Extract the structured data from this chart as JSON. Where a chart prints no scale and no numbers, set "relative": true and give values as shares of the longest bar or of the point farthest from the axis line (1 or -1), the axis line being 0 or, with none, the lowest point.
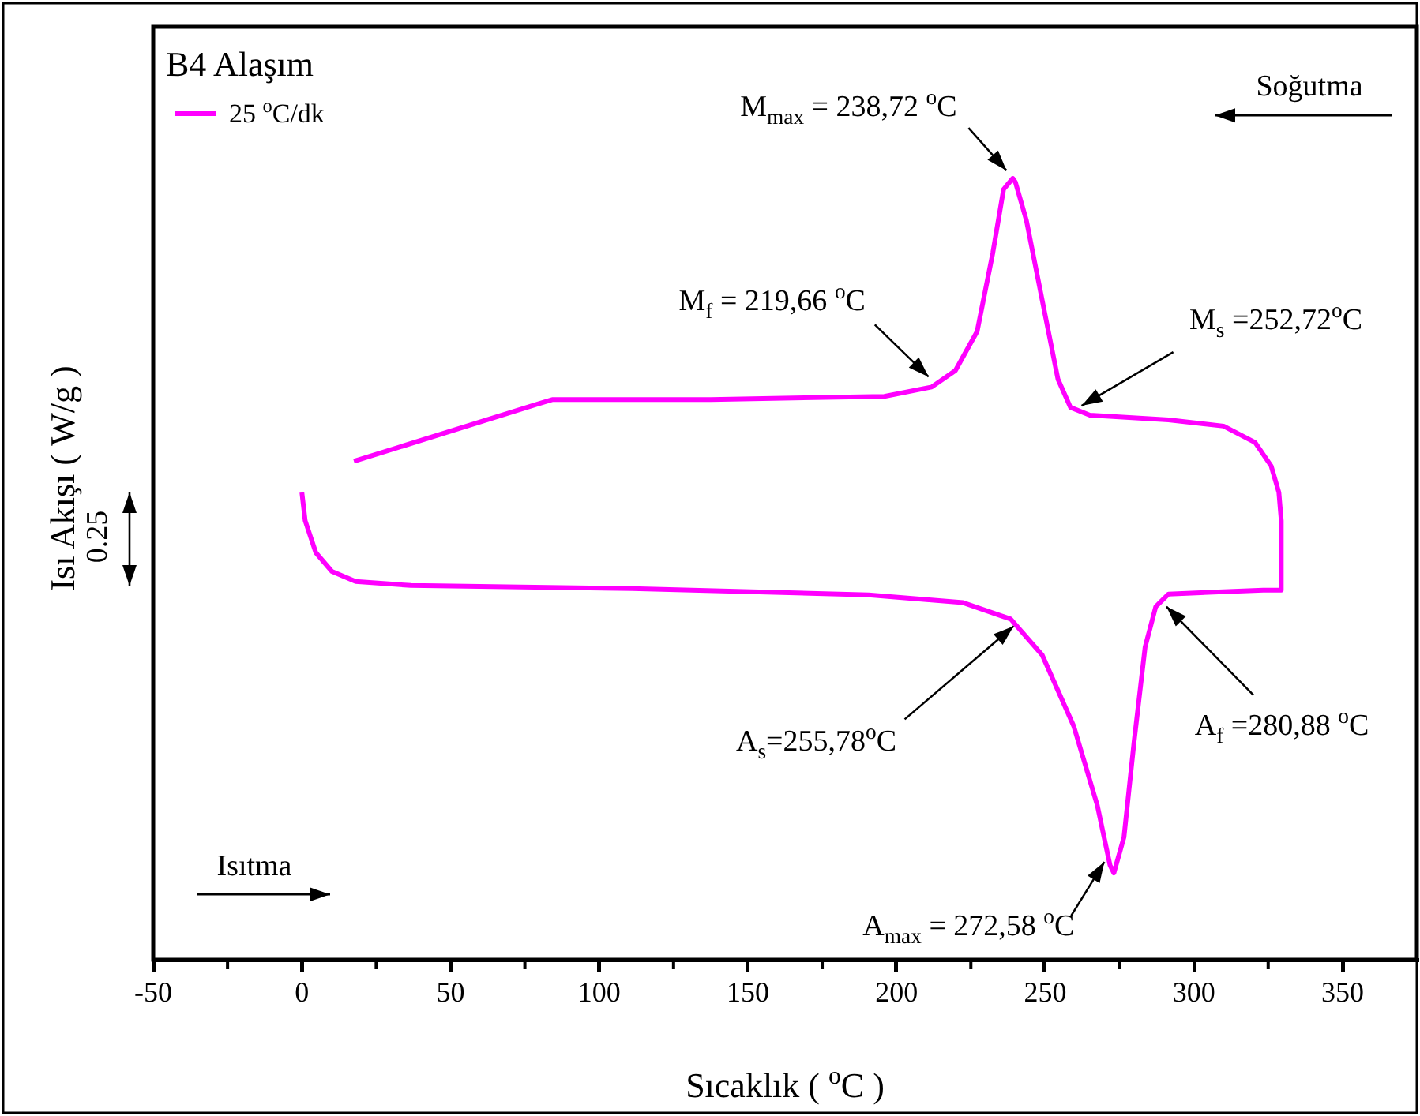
{
  "chart_data": {
    "type": "line",
    "title": "B4 Alaşım",
    "xlabel": "Sıcaklık ( $^{o}$C )",
    "ylabel": "Isı Akışı ( W/g )",
    "relative": true,
    "xlim": [
      -50,
      375
    ],
    "xticks": [
      -50,
      {
        "value": -25,
        "label": null
      },
      0,
      {
        "value": 25,
        "label": null
      },
      50,
      {
        "value": 75,
        "label": null
      },
      100,
      {
        "value": 125,
        "label": null
      },
      150,
      {
        "value": 175,
        "label": null
      },
      200,
      {
        "value": 225,
        "label": null
      },
      250,
      {
        "value": 275,
        "label": null
      },
      300,
      {
        "value": 325,
        "label": null
      },
      350
    ],
    "grid": false,
    "legend": "top left",
    "line_style": "solid",
    "series": [
      {
        "name": "25 $^{o}$C/dk",
        "color": "#ff00ff",
        "x": [
          0,
          1.1,
          4.7,
          10.1,
          18.1,
          36.6,
          111,
          190.6,
          222.4,
          238.4,
          249,
          259.6,
          267.5,
          271.8,
          273.1,
          276.5,
          279.9,
          283.6,
          287.2,
          291.5,
          323.3,
          329.4,
          329.4,
          328.6,
          326,
          320.6,
          310,
          291.5,
          265,
          258.5,
          254.3,
          249,
          243.7,
          240,
          239.1,
          236,
          232.4,
          227.1,
          219.8,
          211.8,
          195.9,
          137.5,
          84.4,
          79.1,
          17.5
        ],
        "values": [
          0.598,
          0.562,
          0.521,
          0.497,
          0.484,
          0.479,
          0.475,
          0.467,
          0.457,
          0.436,
          0.39,
          0.299,
          0.198,
          0.121,
          0.111,
          0.157,
          0.279,
          0.4,
          0.452,
          0.468,
          0.473,
          0.473,
          0.562,
          0.598,
          0.632,
          0.662,
          0.683,
          0.691,
          0.697,
          0.707,
          0.743,
          0.844,
          0.946,
          0.995,
          1,
          0.986,
          0.905,
          0.804,
          0.754,
          0.733,
          0.721,
          0.717,
          0.717,
          0.711,
          0.638
        ]
      }
    ],
    "annotations": [
      {
        "text": "M$_{max}$ = 238,72 $^{o}$C",
        "x": 239.1,
        "y": 1
      },
      {
        "text": "M$_{f}$ = 219,66 $^{o}$C",
        "x": 212.9,
        "y": 0.738
      },
      {
        "text": "M$_{s}$ =252,72$^{o}$C",
        "x": 259.6,
        "y": 0.703
      },
      {
        "text": "A$_{s}$=255,78$^{o}$C",
        "x": 241,
        "y": 0.435
      },
      {
        "text": "A$_{f}$ =280,88 $^{o}$C",
        "x": 289.2,
        "y": 0.46
      },
      {
        "text": "A$_{max}$ = 272,58 $^{o}$C",
        "x": 273.1,
        "y": 0.111
      },
      "Soğutma",
      "Isıtma",
      "0.25"
    ]
  }
}
